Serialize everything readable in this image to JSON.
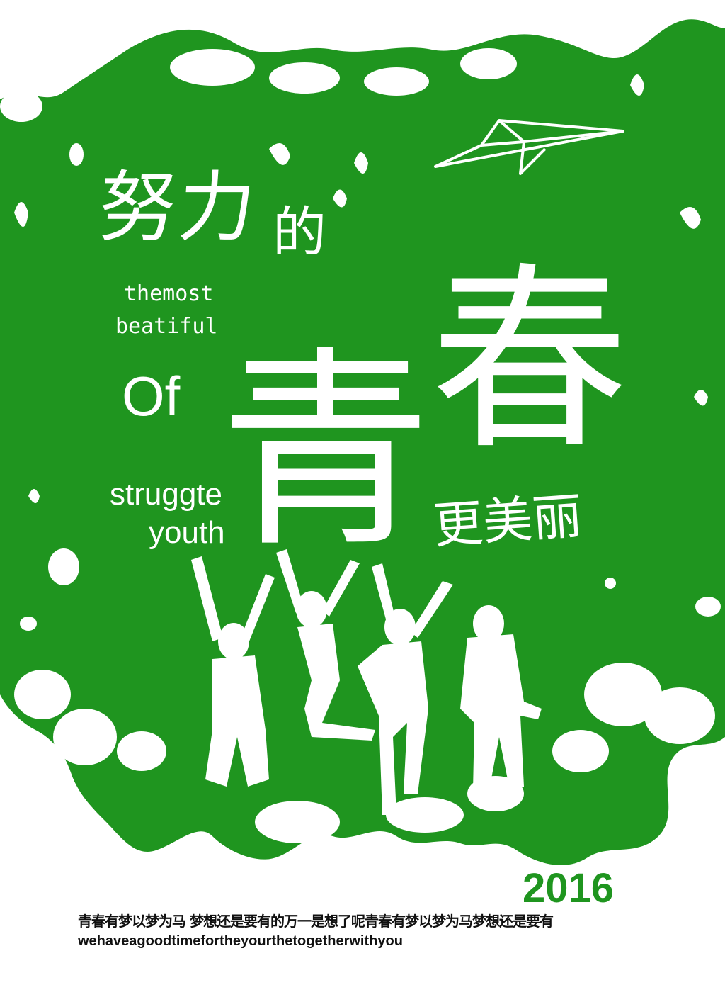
{
  "colors": {
    "green": "#1f951f",
    "white": "#ffffff",
    "text_dark": "#111111"
  },
  "title": {
    "nuli": "努力",
    "de": "的",
    "qing": "青",
    "chun": "春",
    "gengmeili": "更美丽"
  },
  "english": {
    "themost": "themost",
    "beatiful": "beatiful",
    "of": "Of",
    "struggte": "struggte",
    "youth": "youth"
  },
  "year": "2016",
  "footer": {
    "chinese": "青春有梦以梦为马 梦想还是要有的万一是想了呢青春有梦以梦为马梦想还是要有",
    "english": "wehaveagoodtimefortheyourthetogetherwithyou"
  },
  "icons": [
    "paper-plane-icon",
    "jumping-people-silhouette",
    "paint-splatter"
  ]
}
